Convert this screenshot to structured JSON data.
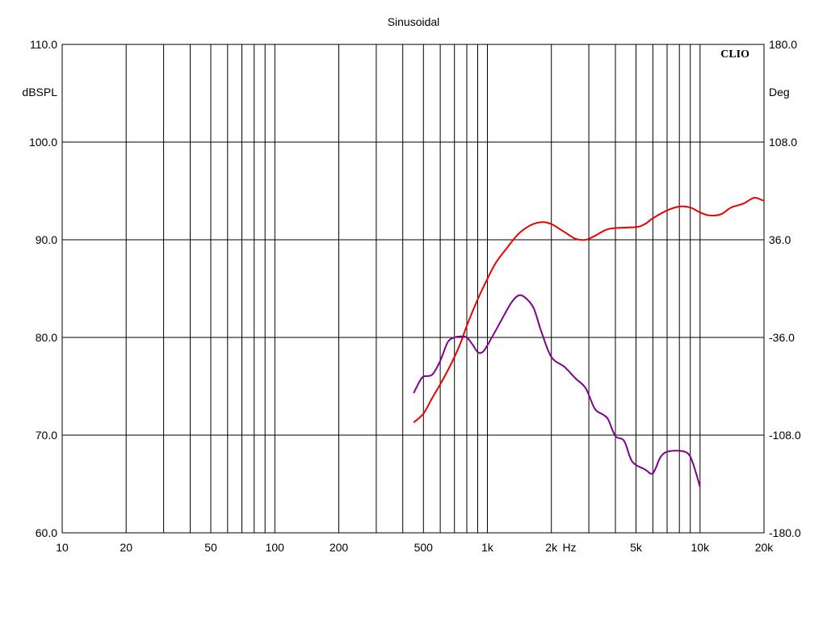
{
  "chart_data": {
    "type": "line",
    "title": "Sinusoidal",
    "brand": "CLIO",
    "x_scale": "log",
    "xlim": [
      10,
      20000
    ],
    "ylim_left": [
      60,
      110
    ],
    "ylim_right": [
      -180,
      180
    ],
    "ylabel_left": "dBSPL",
    "ylabel_right": "Deg",
    "x_unit_label": "Hz",
    "grid": true,
    "x_ticks": [
      {
        "value": 10,
        "label": "10"
      },
      {
        "value": 20,
        "label": "20"
      },
      {
        "value": 50,
        "label": "50"
      },
      {
        "value": 100,
        "label": "100"
      },
      {
        "value": 200,
        "label": "200"
      },
      {
        "value": 500,
        "label": "500"
      },
      {
        "value": 1000,
        "label": "1k"
      },
      {
        "value": 2000,
        "label": "2k"
      },
      {
        "value": 5000,
        "label": "5k"
      },
      {
        "value": 10000,
        "label": "10k"
      },
      {
        "value": 20000,
        "label": "20k"
      }
    ],
    "y_ticks_left": [
      {
        "value": 110,
        "label": "110.0"
      },
      {
        "value": 100,
        "label": "100.0"
      },
      {
        "value": 90,
        "label": "90.0"
      },
      {
        "value": 80,
        "label": "80.0"
      },
      {
        "value": 70,
        "label": "70.0"
      },
      {
        "value": 60,
        "label": "60.0"
      }
    ],
    "y_ticks_right": [
      {
        "value": 180,
        "label": "180.0"
      },
      {
        "value": 108,
        "label": "108.0"
      },
      {
        "value": 36,
        "label": "36.0"
      },
      {
        "value": -36,
        "label": "-36.0"
      },
      {
        "value": -108,
        "label": "-108.0"
      },
      {
        "value": -180,
        "label": "-180.0"
      }
    ],
    "series": [
      {
        "color": "#ee0000",
        "axis": "left",
        "points": [
          [
            450,
            71.3
          ],
          [
            500,
            72.2
          ],
          [
            550,
            73.8
          ],
          [
            600,
            75.2
          ],
          [
            650,
            76.6
          ],
          [
            700,
            78.0
          ],
          [
            750,
            79.5
          ],
          [
            800,
            81.2
          ],
          [
            900,
            83.9
          ],
          [
            1000,
            86.0
          ],
          [
            1100,
            87.7
          ],
          [
            1250,
            89.3
          ],
          [
            1400,
            90.6
          ],
          [
            1600,
            91.5
          ],
          [
            1800,
            91.8
          ],
          [
            2000,
            91.6
          ],
          [
            2300,
            90.8
          ],
          [
            2600,
            90.1
          ],
          [
            2900,
            90.0
          ],
          [
            3200,
            90.4
          ],
          [
            3600,
            91.0
          ],
          [
            4000,
            91.2
          ],
          [
            5000,
            91.3
          ],
          [
            5500,
            91.6
          ],
          [
            6000,
            92.2
          ],
          [
            7000,
            93.0
          ],
          [
            8000,
            93.4
          ],
          [
            9000,
            93.3
          ],
          [
            10000,
            92.8
          ],
          [
            11000,
            92.5
          ],
          [
            12500,
            92.6
          ],
          [
            14000,
            93.3
          ],
          [
            16000,
            93.7
          ],
          [
            18000,
            94.3
          ],
          [
            20000,
            94.0
          ],
          [
            22000,
            94.0
          ]
        ]
      },
      {
        "color": "#800090",
        "axis": "left",
        "points": [
          [
            450,
            74.3
          ],
          [
            480,
            75.5
          ],
          [
            500,
            76.0
          ],
          [
            550,
            76.2
          ],
          [
            600,
            77.6
          ],
          [
            650,
            79.5
          ],
          [
            700,
            80.0
          ],
          [
            750,
            80.1
          ],
          [
            800,
            80.0
          ],
          [
            850,
            79.3
          ],
          [
            900,
            78.5
          ],
          [
            950,
            78.5
          ],
          [
            1000,
            79.2
          ],
          [
            1100,
            80.8
          ],
          [
            1200,
            82.3
          ],
          [
            1300,
            83.6
          ],
          [
            1400,
            84.3
          ],
          [
            1500,
            84.1
          ],
          [
            1650,
            83.0
          ],
          [
            1800,
            80.5
          ],
          [
            2000,
            78.0
          ],
          [
            2300,
            77.0
          ],
          [
            2600,
            75.8
          ],
          [
            2900,
            74.8
          ],
          [
            3200,
            72.7
          ],
          [
            3500,
            72.1
          ],
          [
            3700,
            71.6
          ],
          [
            4000,
            69.9
          ],
          [
            4400,
            69.4
          ],
          [
            4800,
            67.3
          ],
          [
            5500,
            66.5
          ],
          [
            6000,
            66.1
          ],
          [
            6500,
            67.7
          ],
          [
            7000,
            68.3
          ],
          [
            8000,
            68.4
          ],
          [
            8800,
            68.1
          ],
          [
            9300,
            67.0
          ],
          [
            10000,
            64.7
          ]
        ]
      }
    ]
  }
}
